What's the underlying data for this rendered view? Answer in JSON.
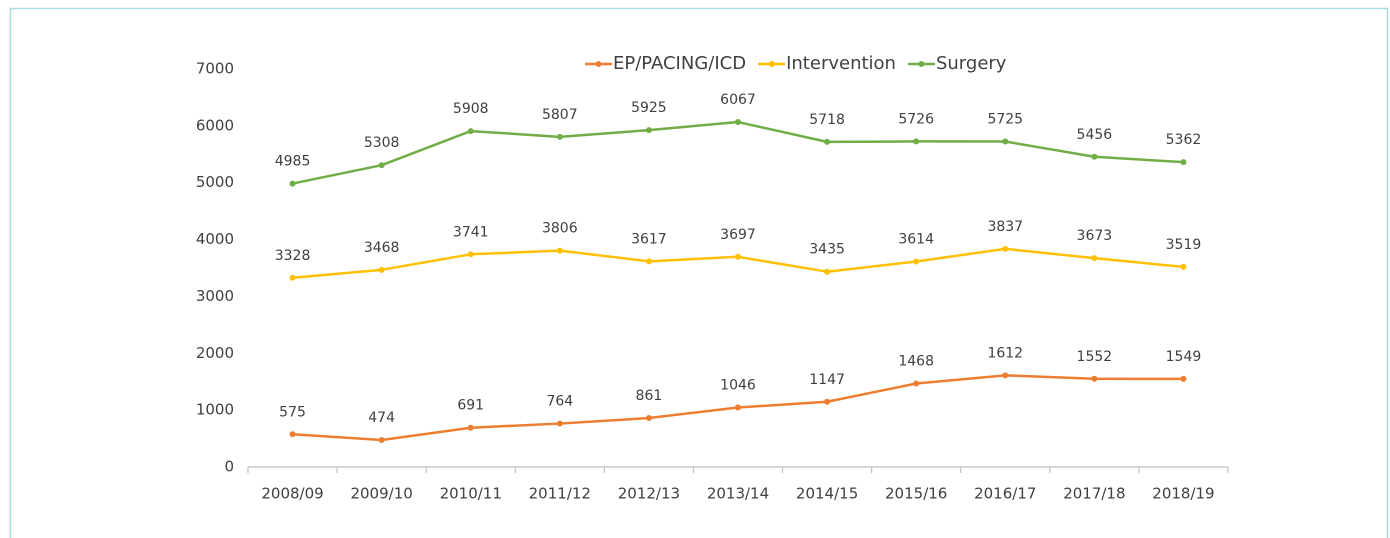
{
  "chart_data": {
    "type": "line",
    "categories": [
      "2008/09",
      "2009/10",
      "2010/11",
      "2011/12",
      "2012/13",
      "2013/14",
      "2014/15",
      "2015/16",
      "2016/17",
      "2017/18",
      "2018/19"
    ],
    "series": [
      {
        "name": "EP/PACING/ICD",
        "color": "#ED7D31",
        "values": [
          575,
          474,
          691,
          764,
          861,
          1046,
          1147,
          1468,
          1612,
          1552,
          1549
        ]
      },
      {
        "name": "Intervention",
        "color": "#FFC000",
        "values": [
          3328,
          3468,
          3741,
          3806,
          3617,
          3697,
          3435,
          3614,
          3837,
          3673,
          3519
        ]
      },
      {
        "name": "Surgery",
        "color": "#70AD47",
        "values": [
          4985,
          5308,
          5908,
          5807,
          5925,
          6067,
          5718,
          5726,
          5725,
          5456,
          5362
        ]
      }
    ],
    "ylim": [
      0,
      7000
    ],
    "yticks": [
      0,
      1000,
      2000,
      3000,
      4000,
      5000,
      6000,
      7000
    ],
    "legend": "top",
    "data_labels": true
  }
}
